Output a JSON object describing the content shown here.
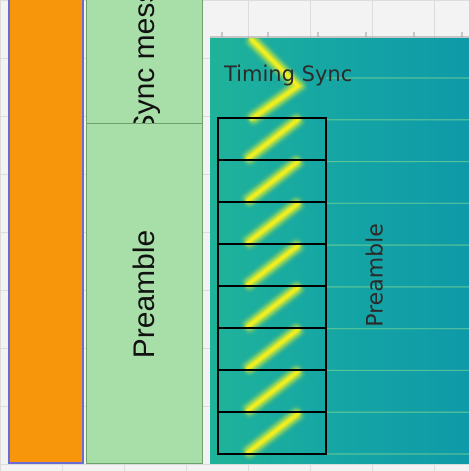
{
  "blocks": {
    "sync_label": "Sync message",
    "preamble_label": "Preamble"
  },
  "spectrogram": {
    "timing_label": "Timing Sync",
    "preamble_label": "Preamble",
    "chirp_count": 8,
    "colors": {
      "background": "#14a8a0",
      "chirp": "#f4ee1e",
      "grid": "#000000"
    }
  }
}
